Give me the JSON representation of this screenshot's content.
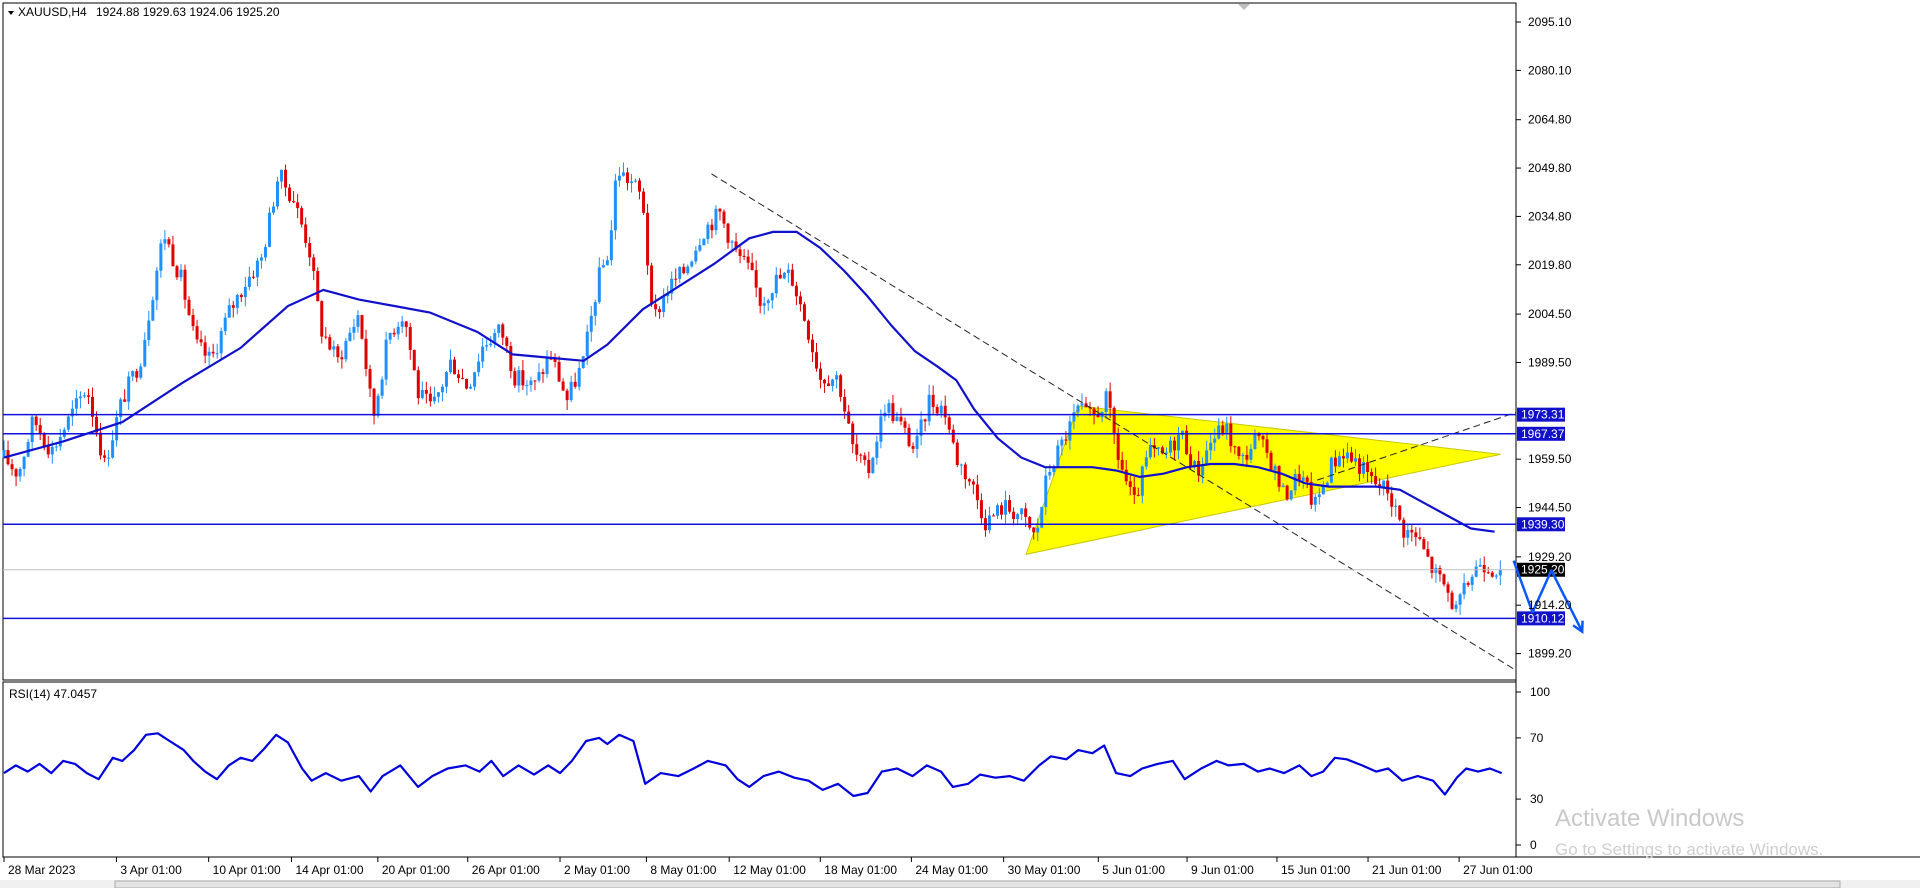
{
  "header": {
    "symbol": "XAUUSD,H4",
    "ohlc": "1924.88 1929.63 1924.06 1925.20"
  },
  "rsi_header": "RSI(14) 47.0457",
  "watermark": {
    "line1": "Activate Windows",
    "line2": "Go to Settings to activate Windows."
  },
  "colors": {
    "candle_up": "#1e90ff",
    "candle_down": "#e00000",
    "moving_average": "#1111cc",
    "horizontal_levels": "#1111dd",
    "triangle_fill": "#ffff00",
    "trendline": "#222222",
    "rsi_line": "#0000dd",
    "grid": "#e6e6e6"
  },
  "chart_data": [
    {
      "type": "candlestick",
      "title": "XAUUSD,H4",
      "y_ticks": [
        "2095.10",
        "2080.10",
        "2064.80",
        "2049.80",
        "2034.80",
        "2019.80",
        "2004.50",
        "1989.50",
        "1959.50",
        "1944.50",
        "1929.20",
        "1914.20",
        "1899.20"
      ],
      "ylim": [
        1891,
        2101
      ],
      "x_ticks": [
        "28 Mar 2023",
        "3 Apr 01:00",
        "10 Apr 01:00",
        "14 Apr 01:00",
        "20 Apr 01:00",
        "26 Apr 01:00",
        "2 May 01:00",
        "8 May 01:00",
        "12 May 01:00",
        "18 May 01:00",
        "24 May 01:00",
        "30 May 01:00",
        "5 Jun 01:00",
        "9 Jun 01:00",
        "15 Jun 01:00",
        "21 Jun 01:00",
        "27 Jun 01:00"
      ],
      "price_points": [
        [
          0,
          1960
        ],
        [
          12,
          1955
        ],
        [
          25,
          1972
        ],
        [
          40,
          1962
        ],
        [
          55,
          1972
        ],
        [
          70,
          1982
        ],
        [
          85,
          1958
        ],
        [
          100,
          1978
        ],
        [
          115,
          1990
        ],
        [
          125,
          2010
        ],
        [
          135,
          2030
        ],
        [
          150,
          2015
        ],
        [
          162,
          1995
        ],
        [
          175,
          1990
        ],
        [
          190,
          2005
        ],
        [
          205,
          2015
        ],
        [
          218,
          2022
        ],
        [
          232,
          2048
        ],
        [
          245,
          2040
        ],
        [
          258,
          2025
        ],
        [
          268,
          2000
        ],
        [
          282,
          1990
        ],
        [
          300,
          2005
        ],
        [
          312,
          1972
        ],
        [
          325,
          1998
        ],
        [
          338,
          2005
        ],
        [
          350,
          1980
        ],
        [
          362,
          1975
        ],
        [
          378,
          1990
        ],
        [
          392,
          1982
        ],
        [
          405,
          1995
        ],
        [
          420,
          2000
        ],
        [
          432,
          1985
        ],
        [
          448,
          1982
        ],
        [
          462,
          1992
        ],
        [
          476,
          1978
        ],
        [
          490,
          1990
        ],
        [
          502,
          2015
        ],
        [
          512,
          2025
        ],
        [
          518,
          2050
        ],
        [
          522,
          2048
        ],
        [
          532,
          2045
        ],
        [
          540,
          2040
        ],
        [
          548,
          2002
        ],
        [
          560,
          2012
        ],
        [
          575,
          2018
        ],
        [
          590,
          2030
        ],
        [
          605,
          2036
        ],
        [
          618,
          2024
        ],
        [
          630,
          2018
        ],
        [
          640,
          2008
        ],
        [
          652,
          2015
        ],
        [
          665,
          2017
        ],
        [
          678,
          2002
        ],
        [
          690,
          1985
        ],
        [
          705,
          1985
        ],
        [
          718,
          1962
        ],
        [
          730,
          1955
        ],
        [
          745,
          1977
        ],
        [
          758,
          1970
        ],
        [
          770,
          1962
        ],
        [
          782,
          1978
        ],
        [
          795,
          1975
        ],
        [
          805,
          1960
        ],
        [
          818,
          1952
        ],
        [
          830,
          1940
        ],
        [
          845,
          1945
        ],
        [
          860,
          1942
        ],
        [
          872,
          1935
        ],
        [
          882,
          1955
        ],
        [
          895,
          1965
        ],
        [
          908,
          1975
        ],
        [
          920,
          1972
        ],
        [
          932,
          1978
        ],
        [
          942,
          1960
        ],
        [
          955,
          1945
        ],
        [
          968,
          1962
        ],
        [
          980,
          1960
        ],
        [
          995,
          1968
        ],
        [
          1008,
          1955
        ],
        [
          1020,
          1965
        ],
        [
          1032,
          1970
        ],
        [
          1045,
          1958
        ],
        [
          1058,
          1966
        ],
        [
          1070,
          1960
        ],
        [
          1082,
          1948
        ],
        [
          1095,
          1955
        ],
        [
          1108,
          1945
        ],
        [
          1122,
          1958
        ],
        [
          1132,
          1962
        ],
        [
          1145,
          1958
        ],
        [
          1158,
          1952
        ],
        [
          1170,
          1950
        ],
        [
          1182,
          1938
        ],
        [
          1195,
          1935
        ],
        [
          1208,
          1925
        ],
        [
          1218,
          1920
        ],
        [
          1228,
          1912
        ],
        [
          1238,
          1922
        ],
        [
          1248,
          1928
        ],
        [
          1258,
          1926
        ],
        [
          1266,
          1925.2
        ]
      ],
      "moving_average": [
        [
          0,
          1960
        ],
        [
          50,
          1965
        ],
        [
          100,
          1971
        ],
        [
          150,
          1983
        ],
        [
          200,
          1994
        ],
        [
          240,
          2007
        ],
        [
          270,
          2012
        ],
        [
          300,
          2009
        ],
        [
          330,
          2007
        ],
        [
          360,
          2005
        ],
        [
          400,
          1999
        ],
        [
          430,
          1992
        ],
        [
          460,
          1991
        ],
        [
          490,
          1990
        ],
        [
          510,
          1995
        ],
        [
          540,
          2006
        ],
        [
          570,
          2013
        ],
        [
          600,
          2020
        ],
        [
          630,
          2028
        ],
        [
          650,
          2030
        ],
        [
          670,
          2030
        ],
        [
          690,
          2025
        ],
        [
          710,
          2018
        ],
        [
          730,
          2010
        ],
        [
          750,
          2001
        ],
        [
          770,
          1993
        ],
        [
          790,
          1988
        ],
        [
          805,
          1984
        ],
        [
          820,
          1975
        ],
        [
          840,
          1966
        ],
        [
          860,
          1960
        ],
        [
          880,
          1957
        ],
        [
          900,
          1957
        ],
        [
          920,
          1957
        ],
        [
          940,
          1956
        ],
        [
          960,
          1954
        ],
        [
          980,
          1955
        ],
        [
          1000,
          1957
        ],
        [
          1020,
          1958
        ],
        [
          1040,
          1958
        ],
        [
          1060,
          1957
        ],
        [
          1080,
          1955
        ],
        [
          1100,
          1952
        ],
        [
          1120,
          1951
        ],
        [
          1140,
          1951
        ],
        [
          1160,
          1951
        ],
        [
          1180,
          1950
        ],
        [
          1200,
          1946
        ],
        [
          1220,
          1942
        ],
        [
          1240,
          1938
        ],
        [
          1260,
          1937
        ]
      ],
      "horizontal_levels": [
        {
          "value": 1973.31,
          "label": "1973.31"
        },
        {
          "value": 1967.37,
          "label": "1967.37"
        },
        {
          "value": 1939.3,
          "label": "1939.30"
        },
        {
          "value": 1910.12,
          "label": "1910.12"
        }
      ],
      "current_price": {
        "value": 1925.2,
        "label": "1925.20"
      },
      "triangle_pattern": [
        [
          864,
          1930
        ],
        [
          908,
          1976
        ],
        [
          1265,
          1961
        ]
      ],
      "trendlines": [
        {
          "from": [
            598,
            2048
          ],
          "to": [
            1920,
            1894
          ]
        },
        {
          "from": [
            1110,
            1953
          ],
          "to": [
            1920,
            1974
          ]
        }
      ],
      "projection_arrow": [
        [
          1276,
          1928
        ],
        [
          1292,
          1912
        ],
        [
          1308,
          1925
        ],
        [
          1334,
          1906
        ]
      ]
    },
    {
      "type": "line",
      "title": "RSI(14) 47.0457",
      "y_ticks": [
        "100",
        "70",
        "30",
        "0"
      ],
      "ylim": [
        0,
        100
      ],
      "values": [
        [
          0,
          47
        ],
        [
          10,
          52
        ],
        [
          20,
          48
        ],
        [
          30,
          53
        ],
        [
          40,
          47
        ],
        [
          50,
          55
        ],
        [
          60,
          53
        ],
        [
          70,
          47
        ],
        [
          80,
          43
        ],
        [
          92,
          57
        ],
        [
          100,
          55
        ],
        [
          110,
          62
        ],
        [
          120,
          72
        ],
        [
          130,
          73
        ],
        [
          140,
          68
        ],
        [
          152,
          62
        ],
        [
          160,
          55
        ],
        [
          170,
          48
        ],
        [
          180,
          43
        ],
        [
          190,
          52
        ],
        [
          200,
          57
        ],
        [
          210,
          55
        ],
        [
          220,
          63
        ],
        [
          230,
          72
        ],
        [
          240,
          67
        ],
        [
          252,
          50
        ],
        [
          260,
          42
        ],
        [
          272,
          47
        ],
        [
          285,
          42
        ],
        [
          300,
          45
        ],
        [
          310,
          35
        ],
        [
          320,
          45
        ],
        [
          335,
          52
        ],
        [
          350,
          38
        ],
        [
          362,
          45
        ],
        [
          375,
          50
        ],
        [
          390,
          52
        ],
        [
          402,
          48
        ],
        [
          412,
          55
        ],
        [
          422,
          45
        ],
        [
          435,
          52
        ],
        [
          448,
          46
        ],
        [
          460,
          52
        ],
        [
          470,
          47
        ],
        [
          480,
          55
        ],
        [
          492,
          68
        ],
        [
          503,
          70
        ],
        [
          510,
          66
        ],
        [
          520,
          72
        ],
        [
          532,
          68
        ],
        [
          542,
          40
        ],
        [
          555,
          47
        ],
        [
          570,
          45
        ],
        [
          583,
          50
        ],
        [
          595,
          55
        ],
        [
          610,
          52
        ],
        [
          620,
          43
        ],
        [
          630,
          38
        ],
        [
          642,
          45
        ],
        [
          655,
          48
        ],
        [
          668,
          44
        ],
        [
          680,
          42
        ],
        [
          692,
          36
        ],
        [
          705,
          40
        ],
        [
          718,
          32
        ],
        [
          730,
          34
        ],
        [
          742,
          48
        ],
        [
          755,
          50
        ],
        [
          768,
          45
        ],
        [
          780,
          52
        ],
        [
          792,
          48
        ],
        [
          802,
          38
        ],
        [
          815,
          40
        ],
        [
          825,
          46
        ],
        [
          838,
          44
        ],
        [
          850,
          45
        ],
        [
          862,
          42
        ],
        [
          875,
          52
        ],
        [
          885,
          58
        ],
        [
          898,
          56
        ],
        [
          908,
          62
        ],
        [
          920,
          60
        ],
        [
          930,
          65
        ],
        [
          940,
          47
        ],
        [
          952,
          45
        ],
        [
          962,
          50
        ],
        [
          975,
          53
        ],
        [
          988,
          55
        ],
        [
          998,
          43
        ],
        [
          1012,
          50
        ],
        [
          1025,
          55
        ],
        [
          1035,
          52
        ],
        [
          1048,
          53
        ],
        [
          1060,
          48
        ],
        [
          1070,
          50
        ],
        [
          1082,
          47
        ],
        [
          1095,
          52
        ],
        [
          1105,
          45
        ],
        [
          1115,
          48
        ],
        [
          1125,
          57
        ],
        [
          1135,
          56
        ],
        [
          1148,
          52
        ],
        [
          1160,
          48
        ],
        [
          1170,
          50
        ],
        [
          1182,
          42
        ],
        [
          1195,
          45
        ],
        [
          1208,
          42
        ],
        [
          1218,
          33
        ],
        [
          1228,
          44
        ],
        [
          1236,
          50
        ],
        [
          1246,
          48
        ],
        [
          1256,
          50
        ],
        [
          1266,
          47
        ]
      ]
    }
  ]
}
